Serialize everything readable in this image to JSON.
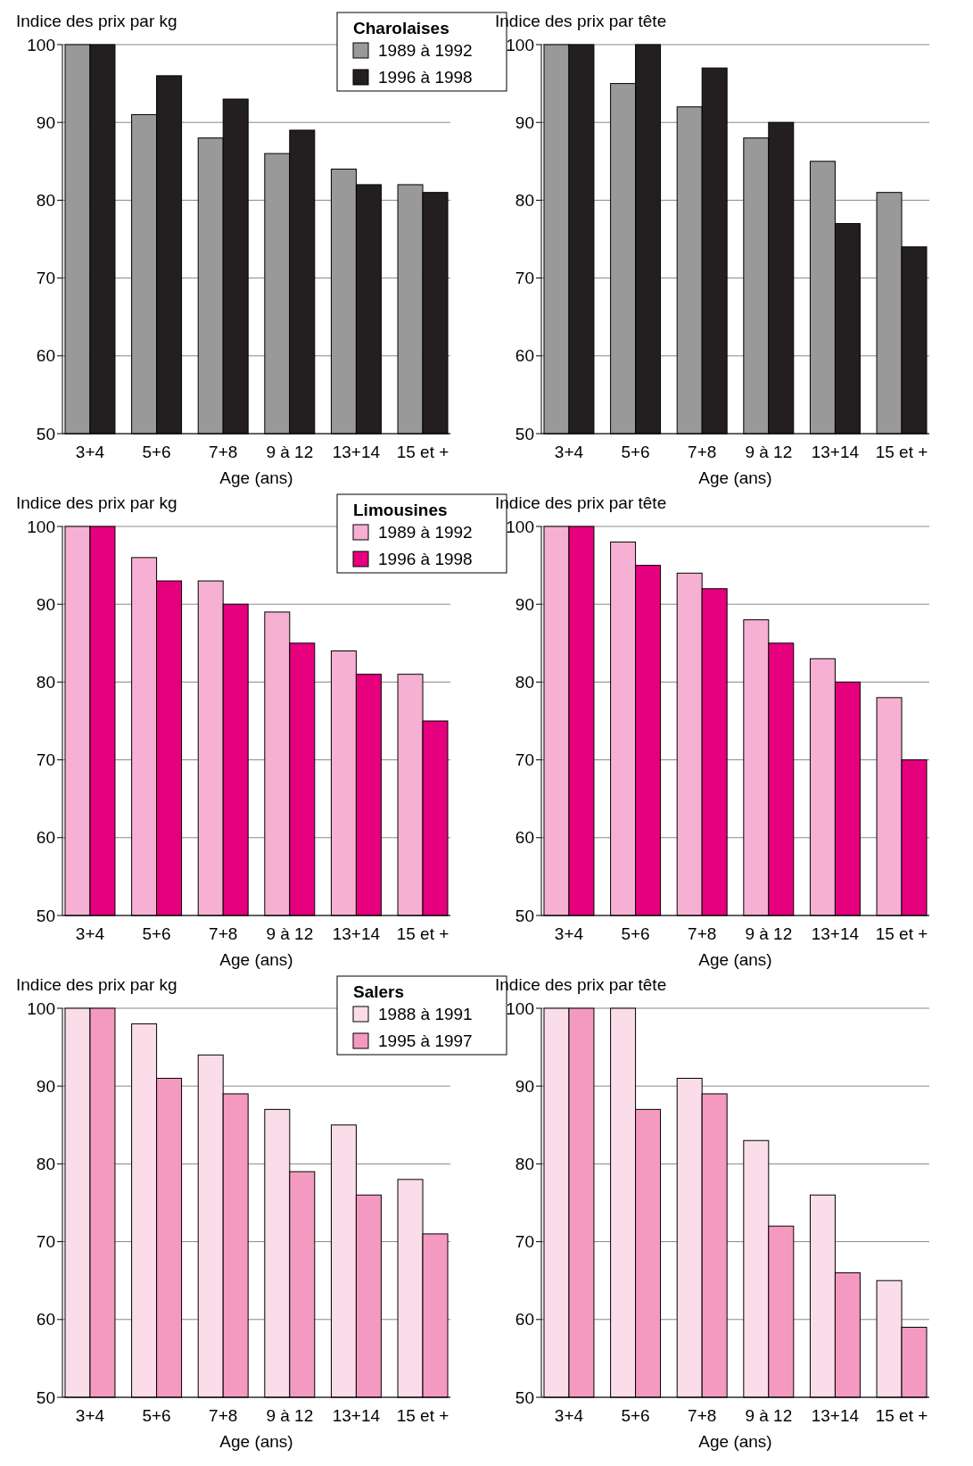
{
  "chart_data": [
    {
      "type": "bar",
      "ylabel": "Indice des prix par kg",
      "xlabel": "Age (ans)",
      "legend_title": "Charolaises",
      "legend": "top right",
      "grid": "y",
      "categories": [
        "3+4",
        "5+6",
        "7+8",
        "9 à 12",
        "13+14",
        "15 et +"
      ],
      "ylim": [
        50,
        100
      ],
      "yticks": [
        50,
        60,
        70,
        80,
        90,
        100
      ],
      "series": [
        {
          "name": "1989 à 1992",
          "color": "#999999",
          "values": [
            100,
            91,
            88,
            86,
            84,
            82
          ]
        },
        {
          "name": "1996 à 1998",
          "color": "#231f20",
          "values": [
            100,
            96,
            93,
            89,
            82,
            81
          ]
        }
      ]
    },
    {
      "type": "bar",
      "ylabel": "Indice des prix par tête",
      "xlabel": "Age (ans)",
      "grid": "y",
      "categories": [
        "3+4",
        "5+6",
        "7+8",
        "9 à 12",
        "13+14",
        "15 et +"
      ],
      "ylim": [
        50,
        100
      ],
      "yticks": [
        50,
        60,
        70,
        80,
        90,
        100
      ],
      "series": [
        {
          "color": "#999999",
          "values": [
            100,
            95,
            92,
            88,
            85,
            81
          ]
        },
        {
          "color": "#231f20",
          "values": [
            100,
            100,
            97,
            90,
            77,
            74
          ]
        }
      ]
    },
    {
      "type": "bar",
      "ylabel": "Indice des prix par kg",
      "xlabel": "Age (ans)",
      "legend_title": "Limousines",
      "legend": "top right",
      "grid": "y",
      "categories": [
        "3+4",
        "5+6",
        "7+8",
        "9 à 12",
        "13+14",
        "15 et +"
      ],
      "ylim": [
        50,
        100
      ],
      "yticks": [
        50,
        60,
        70,
        80,
        90,
        100
      ],
      "series": [
        {
          "name": "1989 à 1992",
          "color": "#f5b0d3",
          "values": [
            100,
            96,
            93,
            89,
            84,
            81
          ]
        },
        {
          "name": "1996 à 1998",
          "color": "#e6007e",
          "values": [
            100,
            93,
            90,
            85,
            81,
            75
          ]
        }
      ]
    },
    {
      "type": "bar",
      "ylabel": "Indice des prix par tête",
      "xlabel": "Age (ans)",
      "grid": "y",
      "categories": [
        "3+4",
        "5+6",
        "7+8",
        "9 à 12",
        "13+14",
        "15 et +"
      ],
      "ylim": [
        50,
        100
      ],
      "yticks": [
        50,
        60,
        70,
        80,
        90,
        100
      ],
      "series": [
        {
          "color": "#f5b0d3",
          "values": [
            100,
            98,
            94,
            88,
            83,
            78
          ]
        },
        {
          "color": "#e6007e",
          "values": [
            100,
            95,
            92,
            85,
            80,
            70
          ]
        }
      ]
    },
    {
      "type": "bar",
      "ylabel": "Indice des prix par kg",
      "xlabel": "Age (ans)",
      "legend_title": "Salers",
      "legend": "top right",
      "grid": "y",
      "categories": [
        "3+4",
        "5+6",
        "7+8",
        "9 à 12",
        "13+14",
        "15 et +"
      ],
      "ylim": [
        50,
        100
      ],
      "yticks": [
        50,
        60,
        70,
        80,
        90,
        100
      ],
      "series": [
        {
          "name": "1988 à 1991",
          "color": "#fbdde9",
          "values": [
            100,
            98,
            94,
            87,
            85,
            78
          ]
        },
        {
          "name": "1995 à 1997",
          "color": "#f49ac1",
          "values": [
            100,
            91,
            89,
            79,
            76,
            71
          ]
        }
      ]
    },
    {
      "type": "bar",
      "ylabel": "Indice des prix par tête",
      "xlabel": "Age (ans)",
      "grid": "y",
      "categories": [
        "3+4",
        "5+6",
        "7+8",
        "9 à 12",
        "13+14",
        "15 et +"
      ],
      "ylim": [
        50,
        100
      ],
      "yticks": [
        50,
        60,
        70,
        80,
        90,
        100
      ],
      "series": [
        {
          "color": "#fbdde9",
          "values": [
            100,
            100,
            91,
            83,
            76,
            65
          ]
        },
        {
          "color": "#f49ac1",
          "values": [
            100,
            87,
            89,
            72,
            66,
            59
          ]
        }
      ]
    }
  ]
}
